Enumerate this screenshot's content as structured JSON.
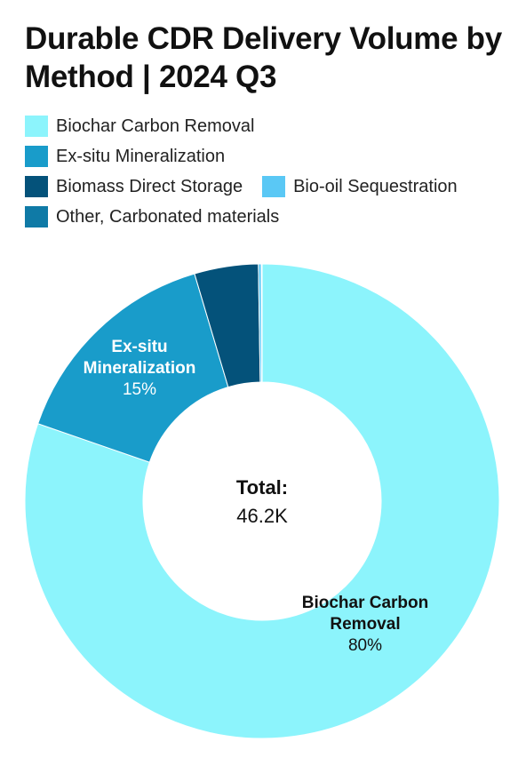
{
  "chart_data": {
    "type": "pie",
    "variant": "donut",
    "title": "Durable CDR Delivery Volume by Method | 2024 Q3",
    "legend_position": "top-left",
    "center_label": {
      "title": "Total:",
      "value": "46.2K"
    },
    "categories": [
      "Biochar Carbon Removal",
      "Ex-situ Mineralization",
      "Biomass Direct Storage",
      "Bio-oil Sequestration",
      "Other, Carbonated materials"
    ],
    "values": [
      80.3,
      15.1,
      4.35,
      0.2,
      0.05
    ],
    "colors": [
      "#8cf4fc",
      "#199cca",
      "#04527a",
      "#5ac8f5",
      "#0f7aa6"
    ],
    "slice_labels": [
      {
        "category": "Biochar Carbon Removal",
        "name_lines": [
          "Biochar Carbon",
          "Removal"
        ],
        "percent": "80%"
      },
      {
        "category": "Ex-situ Mineralization",
        "name_lines": [
          "Ex-situ",
          "Mineralization"
        ],
        "percent": "15%"
      }
    ]
  }
}
